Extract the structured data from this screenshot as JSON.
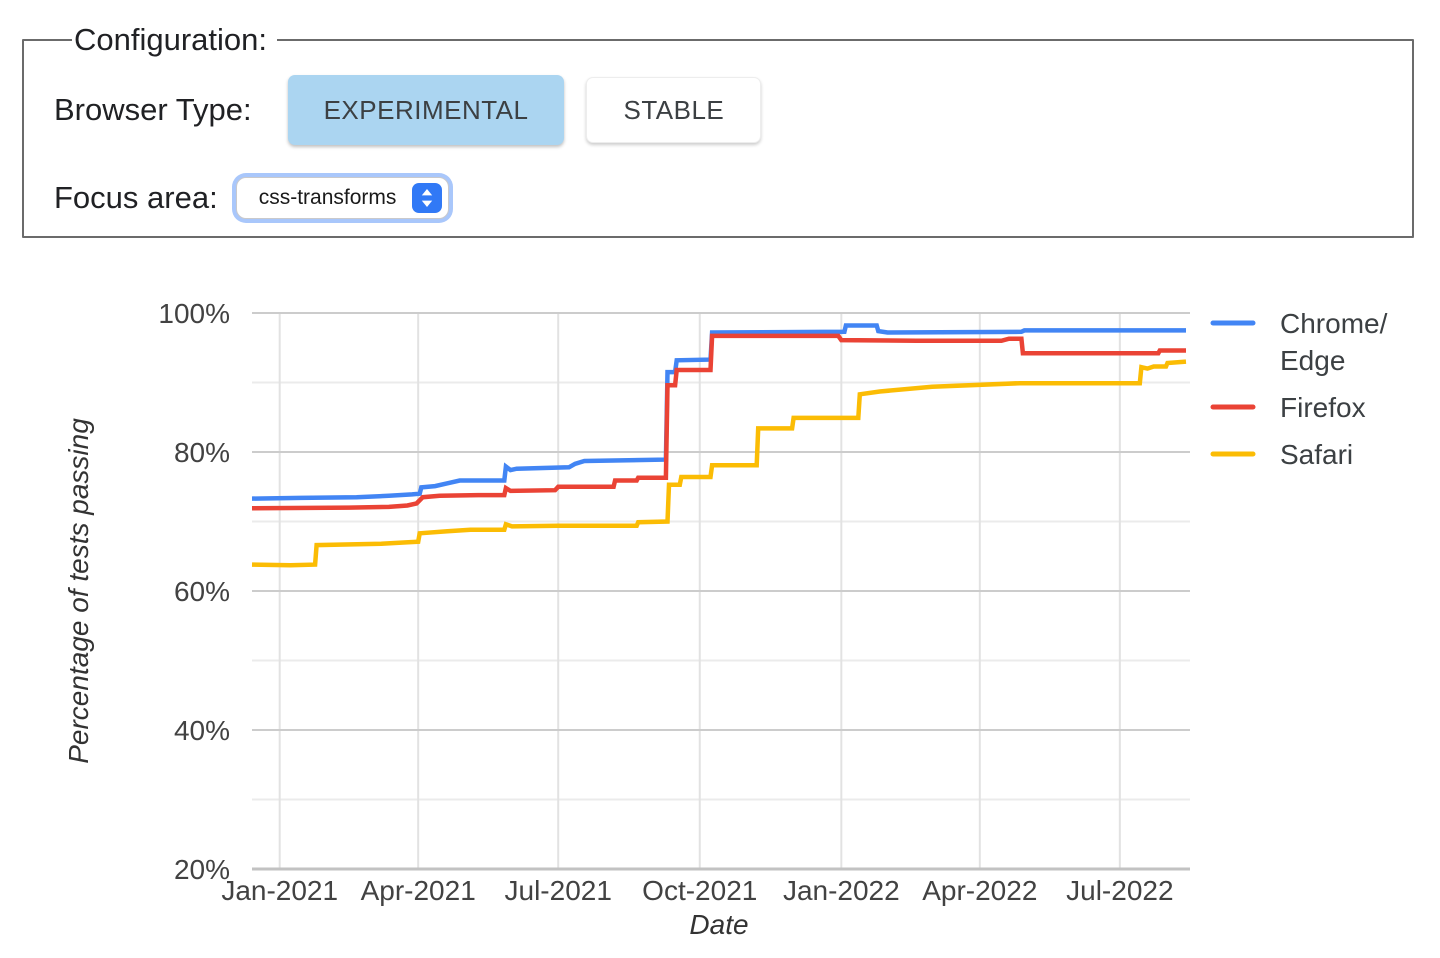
{
  "config_panel": {
    "legend": "Configuration:",
    "browser_type_label": "Browser Type:",
    "browser_type_options": [
      {
        "label": "EXPERIMENTAL",
        "selected": true
      },
      {
        "label": "STABLE",
        "selected": false
      }
    ],
    "focus_area_label": "Focus area:",
    "focus_area_value": "css-transforms"
  },
  "chart_data": {
    "type": "line",
    "title": "",
    "xlabel": "Date",
    "ylabel": "Percentage of tests passing",
    "ylim": [
      20,
      100
    ],
    "x_range": [
      "2020-12-14",
      "2022-08-13"
    ],
    "grid": true,
    "legend_position": "right",
    "y_major_ticks": [
      {
        "value": 100,
        "label": "100%"
      },
      {
        "value": 80,
        "label": "80%"
      },
      {
        "value": 60,
        "label": "60%"
      },
      {
        "value": 40,
        "label": "40%"
      },
      {
        "value": 20,
        "label": "20%"
      }
    ],
    "y_minor_gridlines": [
      90,
      70,
      50,
      30
    ],
    "x_ticks": [
      {
        "date": "2021-01-01",
        "label": "Jan-2021"
      },
      {
        "date": "2021-04-01",
        "label": "Apr-2021"
      },
      {
        "date": "2021-07-01",
        "label": "Jul-2021"
      },
      {
        "date": "2021-10-01",
        "label": "Oct-2021"
      },
      {
        "date": "2022-01-01",
        "label": "Jan-2022"
      },
      {
        "date": "2022-04-01",
        "label": "Apr-2022"
      },
      {
        "date": "2022-07-01",
        "label": "Jul-2022"
      }
    ],
    "series": [
      {
        "name": "Chrome/Edge",
        "legend_lines": [
          "Chrome/",
          "Edge"
        ],
        "color": "#4285F4",
        "points": [
          [
            "2020-12-14",
            73.3
          ],
          [
            "2021-01-15",
            73.4
          ],
          [
            "2021-02-20",
            73.5
          ],
          [
            "2021-03-13",
            73.7
          ],
          [
            "2021-03-28",
            73.9
          ],
          [
            "2021-04-02",
            74.0
          ],
          [
            "2021-04-03",
            74.9
          ],
          [
            "2021-04-12",
            75.1
          ],
          [
            "2021-04-20",
            75.5
          ],
          [
            "2021-04-28",
            75.9
          ],
          [
            "2021-05-27",
            75.9
          ],
          [
            "2021-05-28",
            77.9
          ],
          [
            "2021-05-31",
            77.4
          ],
          [
            "2021-06-04",
            77.6
          ],
          [
            "2021-07-08",
            77.8
          ],
          [
            "2021-07-12",
            78.3
          ],
          [
            "2021-07-18",
            78.7
          ],
          [
            "2021-09-09",
            78.9
          ],
          [
            "2021-09-10",
            91.5
          ],
          [
            "2021-09-15",
            91.5
          ],
          [
            "2021-09-16",
            93.2
          ],
          [
            "2021-10-08",
            93.3
          ],
          [
            "2021-10-09",
            97.2
          ],
          [
            "2022-01-03",
            97.3
          ],
          [
            "2022-01-04",
            98.2
          ],
          [
            "2022-01-24",
            98.2
          ],
          [
            "2022-01-25",
            97.4
          ],
          [
            "2022-01-31",
            97.2
          ],
          [
            "2022-04-28",
            97.3
          ],
          [
            "2022-04-30",
            97.5
          ],
          [
            "2022-08-13",
            97.5
          ]
        ]
      },
      {
        "name": "Firefox",
        "legend_lines": [
          "Firefox"
        ],
        "color": "#EA4335",
        "points": [
          [
            "2020-12-14",
            71.9
          ],
          [
            "2021-02-15",
            72.0
          ],
          [
            "2021-03-13",
            72.1
          ],
          [
            "2021-03-25",
            72.3
          ],
          [
            "2021-03-31",
            72.6
          ],
          [
            "2021-04-04",
            73.5
          ],
          [
            "2021-04-15",
            73.7
          ],
          [
            "2021-05-10",
            73.8
          ],
          [
            "2021-05-27",
            73.8
          ],
          [
            "2021-05-28",
            74.8
          ],
          [
            "2021-05-31",
            74.4
          ],
          [
            "2021-06-29",
            74.5
          ],
          [
            "2021-07-01",
            75.0
          ],
          [
            "2021-08-06",
            75.0
          ],
          [
            "2021-08-07",
            75.9
          ],
          [
            "2021-08-21",
            75.9
          ],
          [
            "2021-08-22",
            76.3
          ],
          [
            "2021-09-09",
            76.3
          ],
          [
            "2021-09-10",
            89.6
          ],
          [
            "2021-09-15",
            89.6
          ],
          [
            "2021-09-16",
            91.8
          ],
          [
            "2021-10-08",
            91.8
          ],
          [
            "2021-10-09",
            96.7
          ],
          [
            "2021-12-30",
            96.7
          ],
          [
            "2022-01-01",
            96.1
          ],
          [
            "2022-02-19",
            96.0
          ],
          [
            "2022-04-15",
            96.0
          ],
          [
            "2022-04-20",
            96.3
          ],
          [
            "2022-04-28",
            96.3
          ],
          [
            "2022-04-29",
            94.2
          ],
          [
            "2022-07-26",
            94.2
          ],
          [
            "2022-07-27",
            94.6
          ],
          [
            "2022-08-13",
            94.6
          ]
        ]
      },
      {
        "name": "Safari",
        "legend_lines": [
          "Safari"
        ],
        "color": "#FBBC04",
        "points": [
          [
            "2020-12-14",
            63.8
          ],
          [
            "2021-01-08",
            63.7
          ],
          [
            "2021-01-24",
            63.8
          ],
          [
            "2021-01-25",
            66.6
          ],
          [
            "2021-03-08",
            66.8
          ],
          [
            "2021-03-24",
            67.0
          ],
          [
            "2021-04-01",
            67.1
          ],
          [
            "2021-04-02",
            68.3
          ],
          [
            "2021-04-20",
            68.6
          ],
          [
            "2021-05-05",
            68.8
          ],
          [
            "2021-05-27",
            68.8
          ],
          [
            "2021-05-28",
            69.6
          ],
          [
            "2021-06-01",
            69.3
          ],
          [
            "2021-07-01",
            69.4
          ],
          [
            "2021-08-21",
            69.4
          ],
          [
            "2021-08-22",
            69.9
          ],
          [
            "2021-09-10",
            70.0
          ],
          [
            "2021-09-11",
            75.3
          ],
          [
            "2021-09-18",
            75.3
          ],
          [
            "2021-09-19",
            76.4
          ],
          [
            "2021-10-08",
            76.4
          ],
          [
            "2021-10-09",
            78.1
          ],
          [
            "2021-11-07",
            78.1
          ],
          [
            "2021-11-08",
            83.4
          ],
          [
            "2021-11-30",
            83.4
          ],
          [
            "2021-12-01",
            84.9
          ],
          [
            "2022-01-12",
            84.9
          ],
          [
            "2022-01-13",
            88.3
          ],
          [
            "2022-01-26",
            88.7
          ],
          [
            "2022-03-01",
            89.4
          ],
          [
            "2022-04-27",
            89.9
          ],
          [
            "2022-07-14",
            89.9
          ],
          [
            "2022-07-15",
            92.2
          ],
          [
            "2022-07-19",
            92.0
          ],
          [
            "2022-07-23",
            92.3
          ],
          [
            "2022-07-31",
            92.3
          ],
          [
            "2022-08-01",
            92.8
          ],
          [
            "2022-08-13",
            93.0
          ]
        ]
      }
    ],
    "colors": {
      "major_gridline": "#cccccc",
      "minor_gridline": "#ebebeb",
      "vertical_gridline": "#e2e2e2",
      "baseline": "#c2c2c2",
      "tick_label": "#424242",
      "axis_title": "#333333",
      "legend_text": "#3c4043"
    }
  }
}
